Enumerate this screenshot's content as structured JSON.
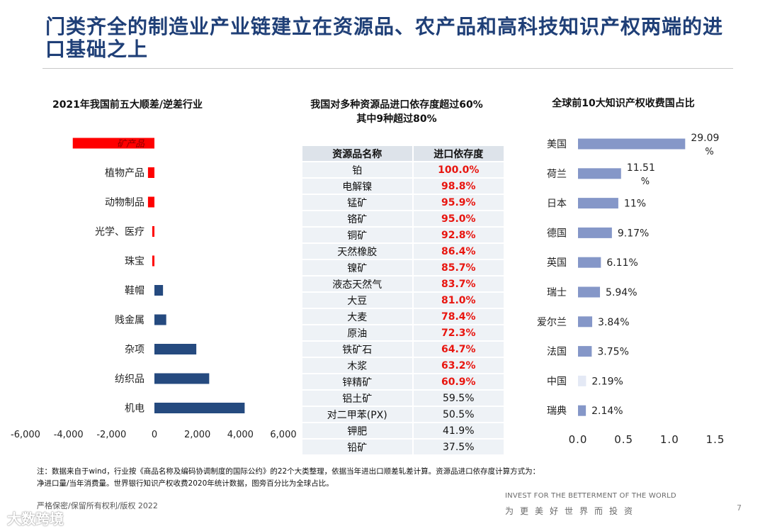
{
  "title": "门类齐全的制造业产业链建立在资源品、农产品和高科技知识产权两端的进口基础之上",
  "chart_data": [
    {
      "type": "bar",
      "orientation": "horizontal",
      "title": "2021年我国前五大顺差/逆差行业",
      "categories": [
        "矿产品",
        "植物产品",
        "动物制品",
        "光学、医疗",
        "珠宝",
        "鞋帽",
        "贱金属",
        "杂项",
        "纺织品",
        "机电"
      ],
      "values": [
        -3800,
        -300,
        -300,
        -100,
        -100,
        400,
        550,
        1950,
        2550,
        4200
      ],
      "xlim": [
        -6000,
        6000
      ],
      "xticks": [
        -6000,
        -4000,
        -2000,
        0,
        2000,
        4000,
        6000
      ],
      "xtick_labels": [
        "-6,000",
        "-4,000",
        "-2,000",
        "0",
        "2,000",
        "4,000",
        "6,000"
      ],
      "negative_color": "#ff0000",
      "positive_color": "#254a7f"
    },
    {
      "type": "table",
      "title": "我国对多种资源品进口依存度超过60%其中9种超过80%",
      "title_lines": [
        "我国对多种资源品进口依存度超过60%",
        "其中9种超过80%"
      ],
      "columns": [
        "资源品名称",
        "进口依存度"
      ],
      "rows": [
        [
          "铂",
          "100.0%"
        ],
        [
          "电解镍",
          "98.8%"
        ],
        [
          "锰矿",
          "95.9%"
        ],
        [
          "铬矿",
          "95.0%"
        ],
        [
          "铜矿",
          "92.8%"
        ],
        [
          "天然橡胶",
          "86.4%"
        ],
        [
          "镍矿",
          "85.7%"
        ],
        [
          "液态天然气",
          "83.7%"
        ],
        [
          "大豆",
          "81.0%"
        ],
        [
          "大麦",
          "78.4%"
        ],
        [
          "原油",
          "72.3%"
        ],
        [
          "铁矿石",
          "64.7%"
        ],
        [
          "木浆",
          "63.2%"
        ],
        [
          "锌精矿",
          "60.9%"
        ],
        [
          "铝土矿",
          "59.5%"
        ],
        [
          "对二甲苯(PX)",
          "50.5%"
        ],
        [
          "钾肥",
          "41.9%"
        ],
        [
          "铅矿",
          "37.5%"
        ]
      ],
      "highlight_threshold": 60,
      "highlight_color": "#e8150f"
    },
    {
      "type": "bar",
      "orientation": "horizontal",
      "title": "全球前10大知识产权收费国占比",
      "categories": [
        "美国",
        "荷兰",
        "日本",
        "德国",
        "英国",
        "瑞士",
        "爱尔兰",
        "法国",
        "中国",
        "瑞典"
      ],
      "values": [
        1.17,
        0.47,
        0.44,
        0.37,
        0.25,
        0.24,
        0.155,
        0.15,
        0.088,
        0.086
      ],
      "data_labels": [
        "29.09%",
        "11.51%",
        "11%",
        "9.17%",
        "6.11%",
        "5.94%",
        "3.84%",
        "3.75%",
        "2.19%",
        "2.14%"
      ],
      "data_label_lines": [
        [
          "29.09",
          "%"
        ],
        [
          "11.51",
          "%"
        ],
        [
          "11%"
        ],
        [
          "9.17%"
        ],
        [
          "6.11%"
        ],
        [
          "5.94%"
        ],
        [
          "3.84%"
        ],
        [
          "3.75%"
        ],
        [
          "2.19%"
        ],
        [
          "2.14%"
        ]
      ],
      "xlim": [
        0,
        1.5
      ],
      "xticks": [
        0,
        0.5,
        1.0,
        1.5
      ],
      "xtick_labels": [
        "0.0",
        "0.5",
        "1.0",
        "1.5"
      ],
      "bar_color": "#8597c8",
      "highlight_category": "中国",
      "highlight_color": "#e4e9f5"
    }
  ],
  "note_lines": [
    "注：数据来自于wind，行业按《商品名称及编码协调制度的国际公约》的22个大类整理，依据当年进出口顺差轧差计算。资源品进口依存度计算方式为：",
    "净进口量/当年消费量。世界银行知识产权收费2020年统计数据，图旁百分比为全球占比。"
  ],
  "footer": {
    "confidential": "严格保密/保留所有权利/版权 2022",
    "slogan_en": "INVEST FOR THE BETTERMENT OF THE WORLD",
    "slogan_cn": "为更美好世界而投资",
    "page": "7",
    "watermark": "大数跨境"
  }
}
